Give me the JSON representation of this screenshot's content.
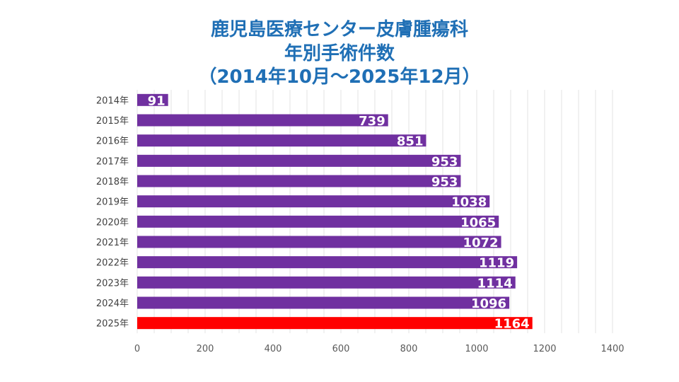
{
  "chart_data": {
    "type": "bar",
    "orientation": "horizontal",
    "title_lines": [
      "鹿児島医療センター皮膚腫瘍科",
      "年別手術件数",
      "（2014年10月～2025年12月）"
    ],
    "categories": [
      "2014年",
      "2015年",
      "2016年",
      "2017年",
      "2018年",
      "2019年",
      "2020年",
      "2021年",
      "2022年",
      "2023年",
      "2024年",
      "2025年"
    ],
    "values": [
      91,
      739,
      851,
      953,
      953,
      1038,
      1065,
      1072,
      1119,
      1114,
      1096,
      1164
    ],
    "xlim": [
      0,
      1400
    ],
    "xticks": [
      0,
      200,
      400,
      600,
      800,
      1000,
      1200,
      1400
    ],
    "minor_step": 50,
    "grid": true,
    "data_labels": true,
    "colors": {
      "title": "#1f6fb5",
      "bar": "#7030a0",
      "highlight": "#ff0000",
      "grid": "#e3e3e3",
      "label": "#ffffff",
      "tick": "#595959"
    },
    "highlight_category": "2025年"
  }
}
